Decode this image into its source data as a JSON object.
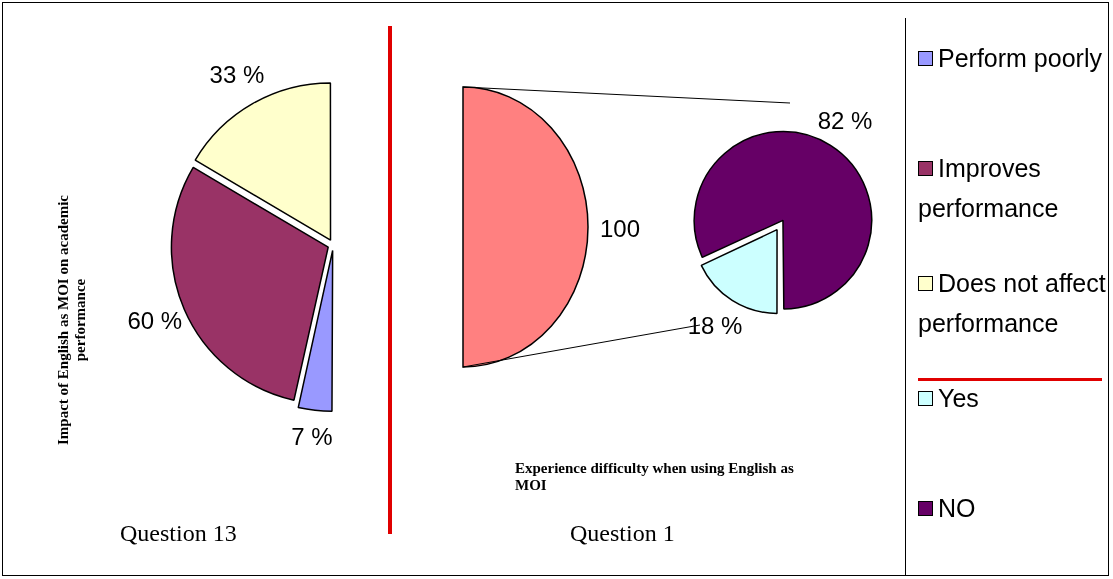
{
  "chart_data": [
    {
      "type": "pie",
      "title": "Question 13",
      "ylabel": "Impact of English as MOI on academic performance",
      "categories": [
        "Perform poorly",
        "Improves performance",
        "Does not affect performance"
      ],
      "values": [
        7,
        60,
        33
      ],
      "value_labels": [
        "7 %",
        "60 %",
        "33 %"
      ],
      "colors": [
        "#9999ff",
        "#993366",
        "#ffffcc"
      ],
      "legend": "right"
    },
    {
      "type": "pie",
      "title": "Question 1",
      "xlabel": "Experience difficulty when using English as MOI",
      "categories": [
        "Yes",
        "NO"
      ],
      "values": [
        18,
        82
      ],
      "value_labels": [
        "18 %",
        "82 %"
      ],
      "colors": [
        "#ccffff",
        "#660066"
      ],
      "annotations": [
        "100"
      ],
      "legend": "right"
    }
  ]
}
